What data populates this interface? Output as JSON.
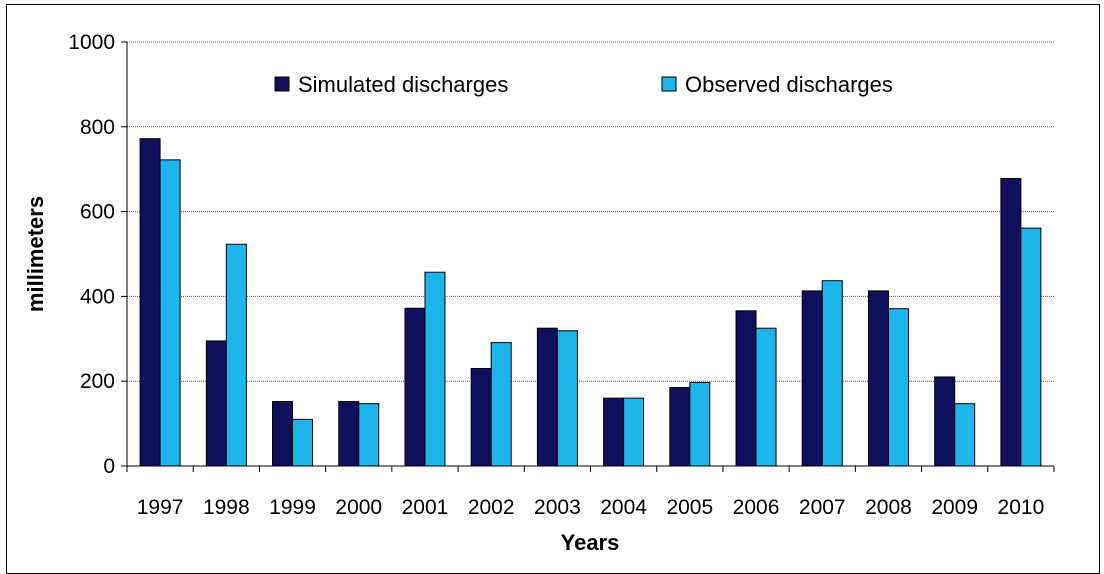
{
  "chart_data": {
    "type": "bar",
    "title": "",
    "xlabel": "Years",
    "ylabel": "millimeters",
    "ylim": [
      0,
      1000
    ],
    "yticks": [
      0,
      200,
      400,
      600,
      800,
      1000
    ],
    "grid": true,
    "legend_position": "top",
    "categories": [
      "1997",
      "1998",
      "1999",
      "2000",
      "2001",
      "2002",
      "2003",
      "2004",
      "2005",
      "2006",
      "2007",
      "2008",
      "2009",
      "2010"
    ],
    "series": [
      {
        "name": "Simulated discharges",
        "color": "#10105e",
        "values": [
          772,
          295,
          152,
          152,
          372,
          230,
          325,
          160,
          185,
          366,
          413,
          413,
          210,
          678
        ]
      },
      {
        "name": "Observed discharges",
        "color": "#1eb4ec",
        "values": [
          722,
          523,
          110,
          147,
          457,
          291,
          319,
          160,
          197,
          325,
          437,
          371,
          147,
          561
        ]
      }
    ]
  }
}
